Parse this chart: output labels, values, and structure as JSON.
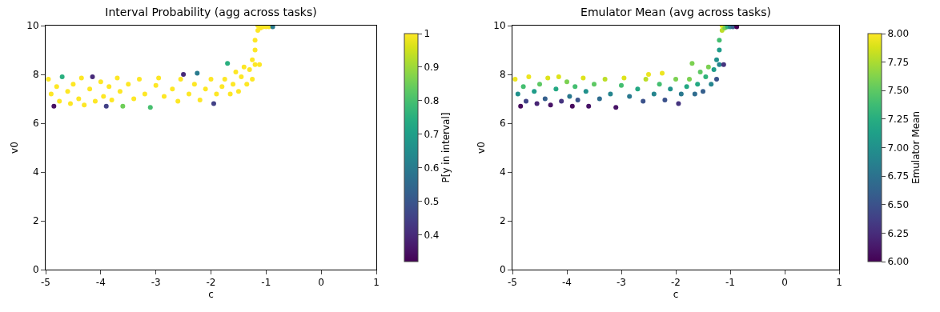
{
  "chart_data": [
    {
      "type": "scatter",
      "title": "Interval Probability (agg across tasks)",
      "xlabel": "c",
      "ylabel": "v0",
      "clabel": "P[y in interval]",
      "x": [
        -4.95,
        -4.9,
        -4.85,
        -4.8,
        -4.75,
        -4.7,
        -4.6,
        -4.55,
        -4.5,
        -4.4,
        -4.35,
        -4.3,
        -4.2,
        -4.15,
        -4.1,
        -4.0,
        -3.95,
        -3.9,
        -3.85,
        -3.8,
        -3.7,
        -3.65,
        -3.6,
        -3.5,
        -3.4,
        -3.3,
        -3.2,
        -3.1,
        -3.0,
        -2.95,
        -2.85,
        -2.7,
        -2.6,
        -2.55,
        -2.5,
        -2.4,
        -2.3,
        -2.25,
        -2.2,
        -2.1,
        -2.0,
        -1.95,
        -1.9,
        -1.8,
        -1.75,
        -1.7,
        -1.65,
        -1.6,
        -1.55,
        -1.5,
        -1.45,
        -1.4,
        -1.35,
        -1.3,
        -1.25,
        -1.25,
        -1.2,
        -1.2,
        -1.2,
        -1.15,
        -1.15,
        -1.1,
        -1.05,
        -1.0,
        -0.95,
        -0.88,
        -1.12
      ],
      "values": [
        7.8,
        7.2,
        6.7,
        7.5,
        6.9,
        7.9,
        7.3,
        6.8,
        7.6,
        7.0,
        7.85,
        6.75,
        7.4,
        7.9,
        6.9,
        7.7,
        7.1,
        6.7,
        7.5,
        6.95,
        7.85,
        7.3,
        6.7,
        7.6,
        7.0,
        7.8,
        7.2,
        6.65,
        7.55,
        7.85,
        7.1,
        7.4,
        6.9,
        7.8,
        8.0,
        7.2,
        7.6,
        8.05,
        6.95,
        7.4,
        7.8,
        6.8,
        7.2,
        7.5,
        7.8,
        8.45,
        7.2,
        7.6,
        8.1,
        7.3,
        7.9,
        8.3,
        7.6,
        8.2,
        7.8,
        8.6,
        8.4,
        9.0,
        9.4,
        9.8,
        10.0,
        9.9,
        9.95,
        9.95,
        9.95,
        9.95,
        8.4
      ],
      "cvalues": [
        1,
        1,
        0.35,
        1,
        1,
        0.75,
        1,
        1,
        1,
        1,
        1,
        1,
        1,
        0.4,
        1,
        1,
        1,
        0.45,
        1,
        1,
        1,
        1,
        0.85,
        1,
        1,
        1,
        1,
        0.8,
        1,
        1,
        1,
        1,
        1,
        1,
        0.4,
        1,
        1,
        0.6,
        1,
        1,
        1,
        0.45,
        1,
        1,
        1,
        0.75,
        1,
        1,
        1,
        1,
        1,
        1,
        1,
        1,
        1,
        1,
        1,
        1,
        1,
        1,
        1,
        1,
        1,
        1,
        1,
        0.6,
        1
      ],
      "xlim": [
        -5,
        1
      ],
      "xticks": [
        -5,
        -4,
        -3,
        -2,
        -1,
        0,
        1
      ],
      "ylim": [
        0,
        10
      ],
      "yticks": [
        0,
        2,
        4,
        6,
        8,
        10
      ],
      "clim": [
        0.32,
        1.0
      ],
      "cticks": [
        0.4,
        0.5,
        0.6,
        0.7,
        0.8,
        0.9,
        1.0
      ]
    },
    {
      "type": "scatter",
      "title": "Emulator Mean (avg across tasks)",
      "xlabel": "c",
      "ylabel": "v0",
      "clabel": "Emulator Mean",
      "x": [
        -4.95,
        -4.9,
        -4.85,
        -4.8,
        -4.75,
        -4.7,
        -4.6,
        -4.55,
        -4.5,
        -4.4,
        -4.35,
        -4.3,
        -4.2,
        -4.15,
        -4.1,
        -4.0,
        -3.95,
        -3.9,
        -3.85,
        -3.8,
        -3.7,
        -3.65,
        -3.6,
        -3.5,
        -3.4,
        -3.3,
        -3.2,
        -3.1,
        -3.0,
        -2.95,
        -2.85,
        -2.7,
        -2.6,
        -2.55,
        -2.5,
        -2.4,
        -2.3,
        -2.25,
        -2.2,
        -2.1,
        -2.0,
        -1.95,
        -1.9,
        -1.8,
        -1.75,
        -1.7,
        -1.65,
        -1.6,
        -1.55,
        -1.5,
        -1.45,
        -1.4,
        -1.35,
        -1.3,
        -1.25,
        -1.25,
        -1.2,
        -1.2,
        -1.2,
        -1.15,
        -1.15,
        -1.1,
        -1.05,
        -1.0,
        -0.95,
        -0.88,
        -1.12
      ],
      "values": [
        7.8,
        7.2,
        6.7,
        7.5,
        6.9,
        7.9,
        7.3,
        6.8,
        7.6,
        7.0,
        7.85,
        6.75,
        7.4,
        7.9,
        6.9,
        7.7,
        7.1,
        6.7,
        7.5,
        6.95,
        7.85,
        7.3,
        6.7,
        7.6,
        7.0,
        7.8,
        7.2,
        6.65,
        7.55,
        7.85,
        7.1,
        7.4,
        6.9,
        7.8,
        8.0,
        7.2,
        7.6,
        8.05,
        6.95,
        7.4,
        7.8,
        6.8,
        7.2,
        7.5,
        7.8,
        8.45,
        7.2,
        7.6,
        8.1,
        7.3,
        7.9,
        8.3,
        7.6,
        8.2,
        7.8,
        8.6,
        8.4,
        9.0,
        9.4,
        9.8,
        10.0,
        9.9,
        9.95,
        9.95,
        9.95,
        9.95,
        8.4
      ],
      "cvalues": [
        7.95,
        7.0,
        6.05,
        7.4,
        6.4,
        7.95,
        7.1,
        6.2,
        7.5,
        6.6,
        7.9,
        6.1,
        7.2,
        7.9,
        6.3,
        7.6,
        6.8,
        6.05,
        7.4,
        6.5,
        7.9,
        7.0,
        6.1,
        7.5,
        6.7,
        7.8,
        6.9,
        6.1,
        7.4,
        7.9,
        6.8,
        7.2,
        6.5,
        7.8,
        7.95,
        6.9,
        7.4,
        7.95,
        6.5,
        7.0,
        7.6,
        6.3,
        6.8,
        7.2,
        7.6,
        7.6,
        6.7,
        7.2,
        7.5,
        6.6,
        7.3,
        7.6,
        6.9,
        7.1,
        6.5,
        7.0,
        6.9,
        7.1,
        7.4,
        7.8,
        7.9,
        7.6,
        7.3,
        6.9,
        6.6,
        6.0,
        6.3
      ],
      "xlim": [
        -5,
        1
      ],
      "xticks": [
        -5,
        -4,
        -3,
        -2,
        -1,
        0,
        1
      ],
      "ylim": [
        0,
        10
      ],
      "yticks": [
        0,
        2,
        4,
        6,
        8,
        10
      ],
      "clim": [
        6.0,
        8.0
      ],
      "cticks": [
        {
          "value": 6.0,
          "label": "6.00"
        },
        {
          "value": 6.25,
          "label": "6.25"
        },
        {
          "value": 6.5,
          "label": "6.50"
        },
        {
          "value": 6.75,
          "label": "6.75"
        },
        {
          "value": 7.0,
          "label": "7.00"
        },
        {
          "value": 7.25,
          "label": "7.25"
        },
        {
          "value": 7.5,
          "label": "7.50"
        },
        {
          "value": 7.75,
          "label": "7.75"
        },
        {
          "value": 8.0,
          "label": "8.00"
        }
      ]
    }
  ]
}
